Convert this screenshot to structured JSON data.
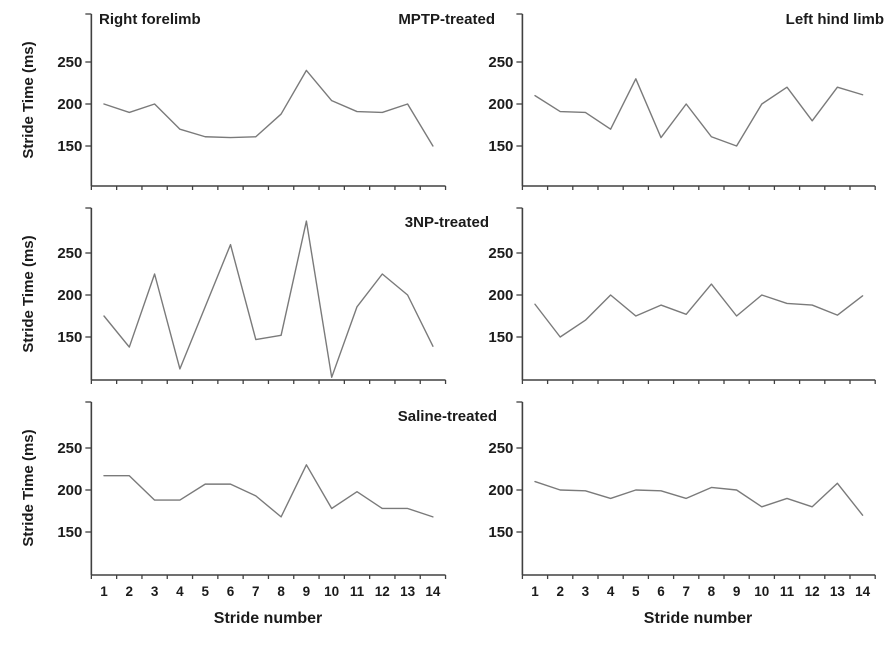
{
  "figure": {
    "column_titles": {
      "left": "Right forelimb",
      "right": "Left hind limb"
    },
    "row_labels": [
      "MPTP-treated",
      "3NP-treated",
      "Saline-treated"
    ],
    "y_axis_title": "Stride Time (ms)",
    "x_axis_title": "Stride number",
    "colors": {
      "line": "#7a7a7a",
      "axis": "#404040",
      "text": "#1b1b1b",
      "background": "#ffffff"
    }
  },
  "chart_data": [
    {
      "type": "line",
      "id": "mptp-right-forelimb",
      "title": "MPTP-treated / Right forelimb",
      "row": 0,
      "col": 0,
      "x": [
        1,
        2,
        3,
        4,
        5,
        6,
        7,
        8,
        9,
        10,
        11,
        12,
        13,
        14
      ],
      "values": [
        200,
        190,
        200,
        170,
        161,
        160,
        161,
        188,
        240,
        204,
        191,
        190,
        200,
        150
      ],
      "xlabel": "Stride number",
      "ylabel": "Stride Time (ms)",
      "yticks": [
        150,
        200,
        250
      ],
      "ylim": [
        100,
        305
      ],
      "grid": false,
      "legend": "none",
      "show_x_tick_labels": false
    },
    {
      "type": "line",
      "id": "mptp-left-hind-limb",
      "title": "MPTP-treated / Left hind limb",
      "row": 0,
      "col": 1,
      "x": [
        1,
        2,
        3,
        4,
        5,
        6,
        7,
        8,
        9,
        10,
        11,
        12,
        13,
        14
      ],
      "values": [
        210,
        191,
        190,
        170,
        230,
        160,
        200,
        161,
        150,
        200,
        220,
        180,
        220,
        211
      ],
      "xlabel": "Stride number",
      "ylabel": "Stride Time (ms)",
      "yticks": [
        150,
        200,
        250
      ],
      "ylim": [
        100,
        305
      ],
      "grid": false,
      "legend": "none",
      "show_x_tick_labels": false
    },
    {
      "type": "line",
      "id": "3np-right-forelimb",
      "title": "3NP-treated / Right forelimb",
      "row": 1,
      "col": 0,
      "x": [
        1,
        2,
        3,
        4,
        5,
        6,
        7,
        8,
        9,
        10,
        11,
        12,
        13,
        14
      ],
      "values": [
        175,
        138,
        225,
        112,
        186,
        260,
        147,
        152,
        288,
        102,
        186,
        225,
        200,
        139
      ],
      "xlabel": "Stride number",
      "ylabel": "Stride Time (ms)",
      "yticks": [
        150,
        200,
        250
      ],
      "ylim": [
        100,
        305
      ],
      "grid": false,
      "legend": "none",
      "show_x_tick_labels": false
    },
    {
      "type": "line",
      "id": "3np-left-hind-limb",
      "title": "3NP-treated / Left hind limb",
      "row": 1,
      "col": 1,
      "x": [
        1,
        2,
        3,
        4,
        5,
        6,
        7,
        8,
        9,
        10,
        11,
        12,
        13,
        14
      ],
      "values": [
        189,
        150,
        170,
        200,
        175,
        188,
        177,
        213,
        175,
        200,
        190,
        188,
        176,
        199
      ],
      "xlabel": "Stride number",
      "ylabel": "Stride Time (ms)",
      "yticks": [
        150,
        200,
        250
      ],
      "ylim": [
        100,
        305
      ],
      "grid": false,
      "legend": "none",
      "show_x_tick_labels": false
    },
    {
      "type": "line",
      "id": "saline-right-forelimb",
      "title": "Saline-treated / Right forelimb",
      "row": 2,
      "col": 0,
      "x": [
        1,
        2,
        3,
        4,
        5,
        6,
        7,
        8,
        9,
        10,
        11,
        12,
        13,
        14
      ],
      "values": [
        217,
        217,
        188,
        188,
        207,
        207,
        193,
        168,
        230,
        178,
        198,
        178,
        178,
        168
      ],
      "xlabel": "Stride number",
      "ylabel": "Stride Time (ms)",
      "yticks": [
        150,
        200,
        250
      ],
      "ylim": [
        100,
        305
      ],
      "grid": false,
      "legend": "none",
      "show_x_tick_labels": true
    },
    {
      "type": "line",
      "id": "saline-left-hind-limb",
      "title": "Saline-treated / Left hind limb",
      "row": 2,
      "col": 1,
      "x": [
        1,
        2,
        3,
        4,
        5,
        6,
        7,
        8,
        9,
        10,
        11,
        12,
        13,
        14
      ],
      "values": [
        210,
        200,
        199,
        190,
        200,
        199,
        190,
        203,
        200,
        180,
        190,
        180,
        208,
        170
      ],
      "xlabel": "Stride number",
      "ylabel": "Stride Time (ms)",
      "yticks": [
        150,
        200,
        250
      ],
      "ylim": [
        100,
        305
      ],
      "grid": false,
      "legend": "none",
      "show_x_tick_labels": true
    }
  ]
}
